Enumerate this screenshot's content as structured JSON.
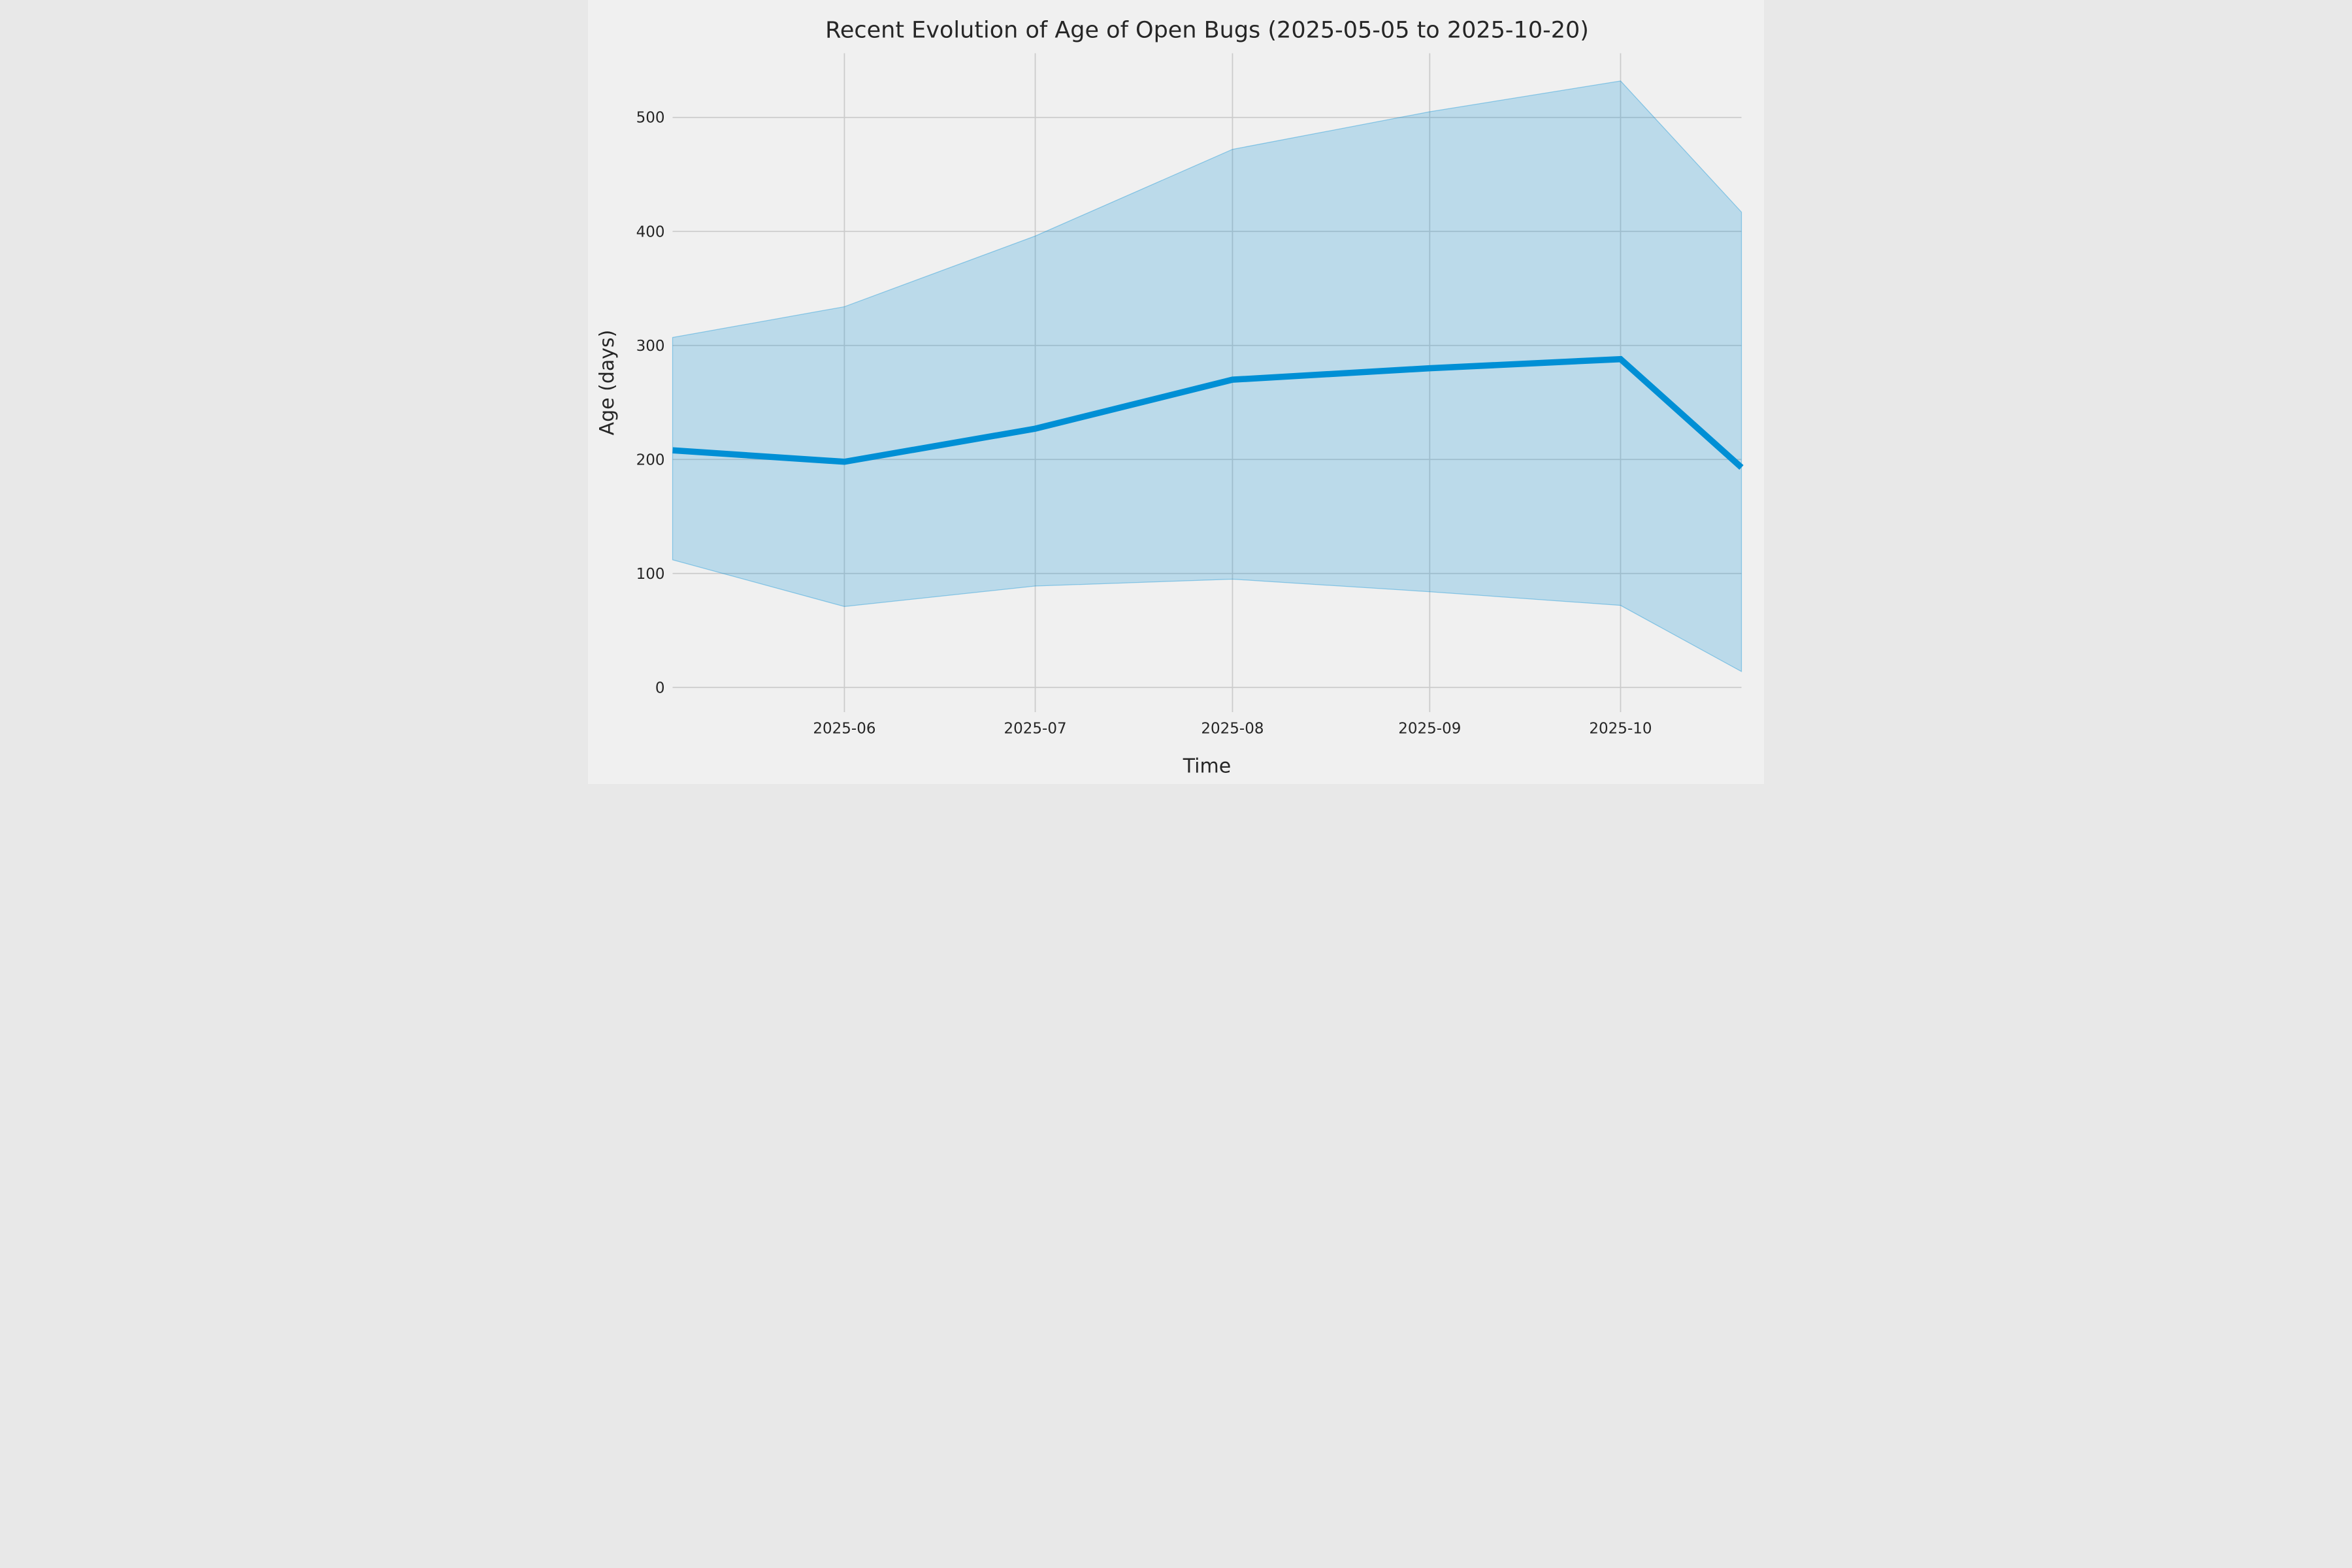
{
  "figure": {
    "title": "Recent Evolution of Age of Open Bugs (2025-05-05 to 2025-10-20)",
    "xlabel": "Time",
    "ylabel": "Age (days)"
  },
  "chart_data": {
    "type": "line",
    "title": "Recent Evolution of Age of Open Bugs (2025-05-05 to 2025-10-20)",
    "xlabel": "Time",
    "ylabel": "Age (days)",
    "x_dates": [
      "2025-05-05",
      "2025-06-01",
      "2025-07-01",
      "2025-08-01",
      "2025-09-01",
      "2025-10-01",
      "2025-10-20"
    ],
    "x_days": [
      0,
      27,
      57,
      88,
      119,
      149,
      168
    ],
    "series": [
      {
        "name": "mean-age",
        "role": "center-line",
        "values": [
          208,
          198,
          227,
          270,
          280,
          288,
          193
        ]
      },
      {
        "name": "upper-band",
        "role": "band-upper",
        "values": [
          307,
          334,
          396,
          472,
          505,
          532,
          417
        ]
      },
      {
        "name": "lower-band",
        "role": "band-lower",
        "values": [
          112,
          71,
          89,
          95,
          84,
          72,
          14
        ]
      }
    ],
    "x_ticks": [
      {
        "label": "2025-06",
        "day": 27
      },
      {
        "label": "2025-07",
        "day": 57
      },
      {
        "label": "2025-08",
        "day": 88
      },
      {
        "label": "2025-09",
        "day": 119
      },
      {
        "label": "2025-10",
        "day": 149
      }
    ],
    "y_ticks": [
      0,
      100,
      200,
      300,
      400,
      500
    ],
    "xlim_days": [
      0,
      168
    ],
    "ylim": [
      -21.6,
      556.3
    ],
    "grid": true,
    "legend": "none",
    "colors": {
      "line": "#008fd5",
      "band_fill": "rgba(0,143,213,0.22)",
      "band_edge": "rgba(0,143,213,0.38)",
      "background": "#f0f0f0",
      "grid": "#cbcbcb",
      "text": "#262626"
    }
  }
}
